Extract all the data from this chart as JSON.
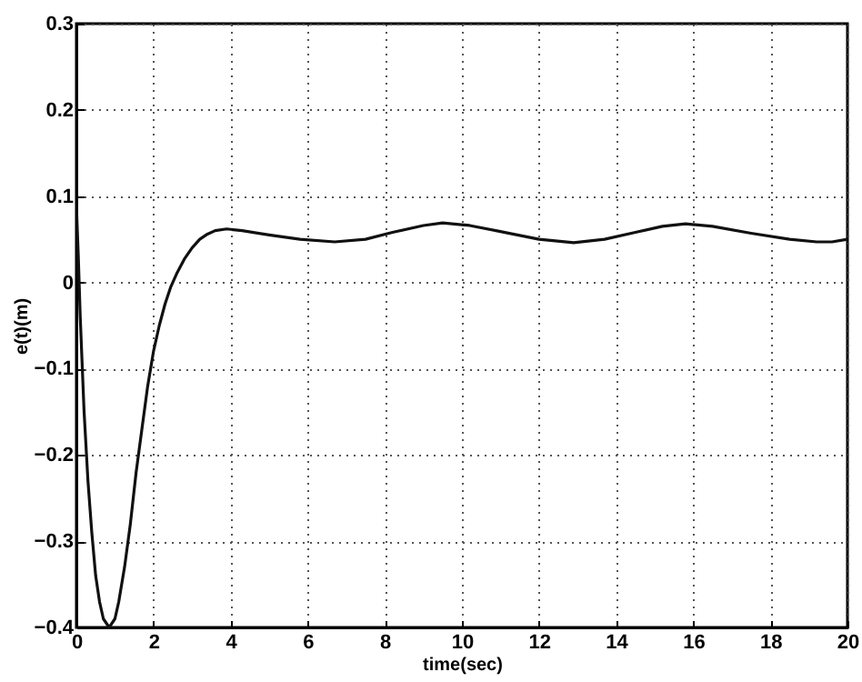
{
  "chart_data": {
    "type": "line",
    "xlabel": "time(sec)",
    "ylabel": "e(t)(m)",
    "x": [
      0,
      0.05,
      0.1,
      0.2,
      0.3,
      0.4,
      0.5,
      0.6,
      0.7,
      0.85,
      1.0,
      1.1,
      1.25,
      1.4,
      1.55,
      1.7,
      1.85,
      2.0,
      2.15,
      2.3,
      2.45,
      2.6,
      2.8,
      3.0,
      3.2,
      3.4,
      3.6,
      3.9,
      4.3,
      5.0,
      5.8,
      6.7,
      7.5,
      8.2,
      9.0,
      9.5,
      10.2,
      11.0,
      12.0,
      12.9,
      13.7,
      14.5,
      15.2,
      15.8,
      16.5,
      17.5,
      18.5,
      19.2,
      19.6,
      20
    ],
    "series": [
      {
        "color": "#111111",
        "values": [
          0.09,
          0.03,
          -0.04,
          -0.15,
          -0.23,
          -0.29,
          -0.34,
          -0.37,
          -0.39,
          -0.4,
          -0.39,
          -0.37,
          -0.33,
          -0.28,
          -0.22,
          -0.17,
          -0.12,
          -0.08,
          -0.05,
          -0.025,
          -0.005,
          0.01,
          0.027,
          0.04,
          0.05,
          0.056,
          0.06,
          0.062,
          0.06,
          0.055,
          0.05,
          0.047,
          0.05,
          0.058,
          0.066,
          0.069,
          0.066,
          0.059,
          0.05,
          0.046,
          0.05,
          0.058,
          0.065,
          0.068,
          0.065,
          0.057,
          0.05,
          0.047,
          0.047,
          0.05
        ]
      }
    ],
    "xlim": [
      0,
      20
    ],
    "xticks": [
      0,
      2,
      4,
      6,
      8,
      10,
      12,
      14,
      16,
      18,
      20
    ],
    "ylim": [
      -0.4,
      0.3
    ],
    "yticks": [
      -0.4,
      -0.3,
      -0.2,
      -0.1,
      0,
      0.1,
      0.2,
      0.3
    ],
    "grid": true,
    "line_style": "solid"
  }
}
